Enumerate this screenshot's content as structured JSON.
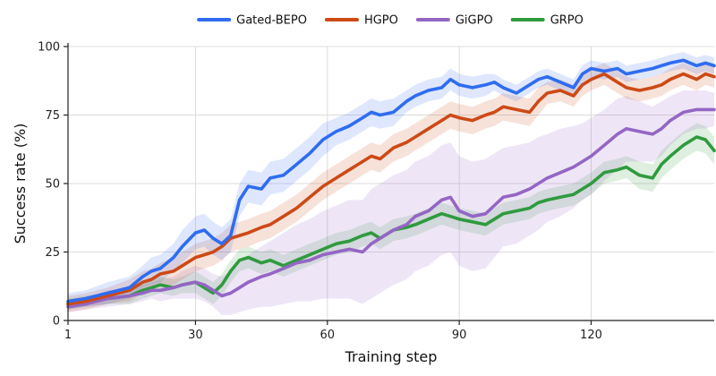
{
  "chart_data": {
    "type": "line",
    "xlabel": "Training step",
    "ylabel": "Success rate (%)",
    "xlim": [
      1,
      148
    ],
    "ylim": [
      0,
      100
    ],
    "x_ticks": [
      1,
      30,
      60,
      90,
      120
    ],
    "y_ticks": [
      0,
      25,
      50,
      75,
      100
    ],
    "grid": true,
    "legend_position": "top-center",
    "shaded_band": "variability band around each series",
    "series": [
      {
        "name": "Gated-BEPO",
        "color": "#2f6cf0",
        "x": [
          1,
          5,
          10,
          15,
          18,
          20,
          22,
          25,
          27,
          30,
          32,
          34,
          36,
          38,
          40,
          42,
          45,
          47,
          50,
          53,
          56,
          59,
          62,
          65,
          68,
          70,
          72,
          75,
          78,
          80,
          83,
          86,
          88,
          90,
          93,
          96,
          98,
          100,
          103,
          106,
          108,
          110,
          113,
          116,
          118,
          120,
          123,
          126,
          128,
          131,
          134,
          136,
          138,
          141,
          144,
          146,
          148
        ],
        "values": [
          7,
          8,
          10,
          12,
          16,
          18,
          19,
          23,
          27,
          32,
          33,
          30,
          28,
          31,
          44,
          49,
          48,
          52,
          53,
          57,
          61,
          66,
          69,
          71,
          74,
          76,
          75,
          76,
          80,
          82,
          84,
          85,
          88,
          86,
          85,
          86,
          87,
          85,
          83,
          86,
          88,
          89,
          87,
          85,
          90,
          92,
          91,
          92,
          90,
          91,
          92,
          93,
          94,
          95,
          93,
          94,
          93
        ],
        "band": [
          3,
          3,
          4,
          4,
          4,
          5,
          5,
          5,
          6,
          6,
          6,
          6,
          6,
          6,
          6,
          6,
          6,
          6,
          6,
          6,
          6,
          6,
          5,
          5,
          5,
          5,
          5,
          5,
          4,
          4,
          4,
          4,
          4,
          4,
          4,
          4,
          3,
          3,
          3,
          3,
          3,
          3,
          3,
          3,
          3,
          3,
          3,
          3,
          3,
          3,
          3,
          3,
          3,
          3,
          3,
          3,
          3
        ]
      },
      {
        "name": "HGPO",
        "color": "#cc4a16",
        "x": [
          1,
          5,
          10,
          15,
          18,
          20,
          22,
          25,
          27,
          30,
          32,
          34,
          36,
          38,
          40,
          42,
          45,
          47,
          50,
          53,
          56,
          59,
          62,
          65,
          68,
          70,
          72,
          75,
          78,
          80,
          83,
          86,
          88,
          90,
          93,
          96,
          98,
          100,
          103,
          106,
          108,
          110,
          113,
          116,
          118,
          120,
          123,
          126,
          128,
          131,
          134,
          136,
          138,
          141,
          144,
          146,
          148
        ],
        "values": [
          6,
          7,
          9,
          11,
          14,
          15,
          17,
          18,
          20,
          23,
          24,
          25,
          27,
          30,
          31,
          32,
          34,
          35,
          38,
          41,
          45,
          49,
          52,
          55,
          58,
          60,
          59,
          63,
          65,
          67,
          70,
          73,
          75,
          74,
          73,
          75,
          76,
          78,
          77,
          76,
          80,
          83,
          84,
          82,
          86,
          88,
          90,
          87,
          85,
          84,
          85,
          86,
          88,
          90,
          88,
          90,
          89
        ],
        "band": [
          3,
          3,
          3,
          4,
          4,
          4,
          4,
          5,
          5,
          5,
          5,
          5,
          5,
          5,
          5,
          5,
          5,
          5,
          5,
          5,
          5,
          5,
          5,
          5,
          5,
          5,
          5,
          5,
          5,
          5,
          5,
          5,
          5,
          5,
          5,
          5,
          5,
          5,
          5,
          5,
          5,
          4,
          4,
          4,
          4,
          4,
          4,
          4,
          4,
          4,
          4,
          4,
          4,
          4,
          4,
          4,
          4
        ]
      },
      {
        "name": "GiGPO",
        "color": "#9466c4",
        "x": [
          1,
          5,
          10,
          15,
          18,
          20,
          22,
          25,
          27,
          30,
          32,
          34,
          36,
          38,
          40,
          42,
          45,
          47,
          50,
          53,
          56,
          59,
          62,
          65,
          68,
          70,
          72,
          75,
          78,
          80,
          83,
          86,
          88,
          90,
          93,
          96,
          98,
          100,
          103,
          106,
          108,
          110,
          113,
          116,
          118,
          120,
          123,
          126,
          128,
          131,
          134,
          136,
          138,
          141,
          144,
          146,
          148
        ],
        "values": [
          5,
          6,
          8,
          9,
          10,
          11,
          11,
          12,
          13,
          14,
          13,
          11,
          9,
          10,
          12,
          14,
          16,
          17,
          19,
          21,
          22,
          24,
          25,
          26,
          25,
          28,
          30,
          33,
          35,
          38,
          40,
          44,
          45,
          40,
          38,
          39,
          42,
          45,
          46,
          48,
          50,
          52,
          54,
          56,
          58,
          60,
          64,
          68,
          70,
          69,
          68,
          70,
          73,
          76,
          77,
          77,
          77
        ],
        "band": [
          2,
          2,
          3,
          3,
          3,
          3,
          4,
          4,
          5,
          6,
          6,
          6,
          7,
          8,
          9,
          10,
          11,
          12,
          13,
          14,
          15,
          16,
          17,
          18,
          19,
          20,
          20,
          20,
          20,
          20,
          20,
          20,
          20,
          20,
          20,
          20,
          19,
          18,
          18,
          17,
          17,
          16,
          16,
          15,
          14,
          14,
          13,
          13,
          12,
          11,
          10,
          10,
          9,
          8,
          7,
          7,
          6
        ]
      },
      {
        "name": "GRPO",
        "color": "#2f9a3e",
        "x": [
          1,
          5,
          10,
          15,
          18,
          20,
          22,
          25,
          27,
          30,
          32,
          34,
          36,
          38,
          40,
          42,
          45,
          47,
          50,
          53,
          56,
          59,
          62,
          65,
          68,
          70,
          72,
          75,
          78,
          80,
          83,
          86,
          88,
          90,
          93,
          96,
          98,
          100,
          103,
          106,
          108,
          110,
          113,
          116,
          118,
          120,
          123,
          126,
          128,
          131,
          134,
          136,
          138,
          141,
          144,
          146,
          148
        ],
        "values": [
          6,
          7,
          8,
          9,
          11,
          12,
          13,
          12,
          13,
          14,
          12,
          10,
          13,
          18,
          22,
          23,
          21,
          22,
          20,
          22,
          24,
          26,
          28,
          29,
          31,
          32,
          30,
          33,
          34,
          35,
          37,
          39,
          38,
          37,
          36,
          35,
          37,
          39,
          40,
          41,
          43,
          44,
          45,
          46,
          48,
          50,
          54,
          55,
          56,
          53,
          52,
          57,
          60,
          64,
          67,
          66,
          62
        ],
        "band": [
          2,
          2,
          2,
          3,
          3,
          3,
          3,
          3,
          3,
          4,
          4,
          4,
          4,
          4,
          4,
          4,
          4,
          4,
          4,
          4,
          4,
          4,
          4,
          4,
          4,
          4,
          4,
          4,
          4,
          4,
          4,
          4,
          4,
          4,
          4,
          4,
          4,
          4,
          4,
          4,
          4,
          4,
          4,
          4,
          4,
          4,
          4,
          4,
          4,
          5,
          5,
          5,
          5,
          5,
          5,
          5,
          5
        ]
      }
    ]
  }
}
